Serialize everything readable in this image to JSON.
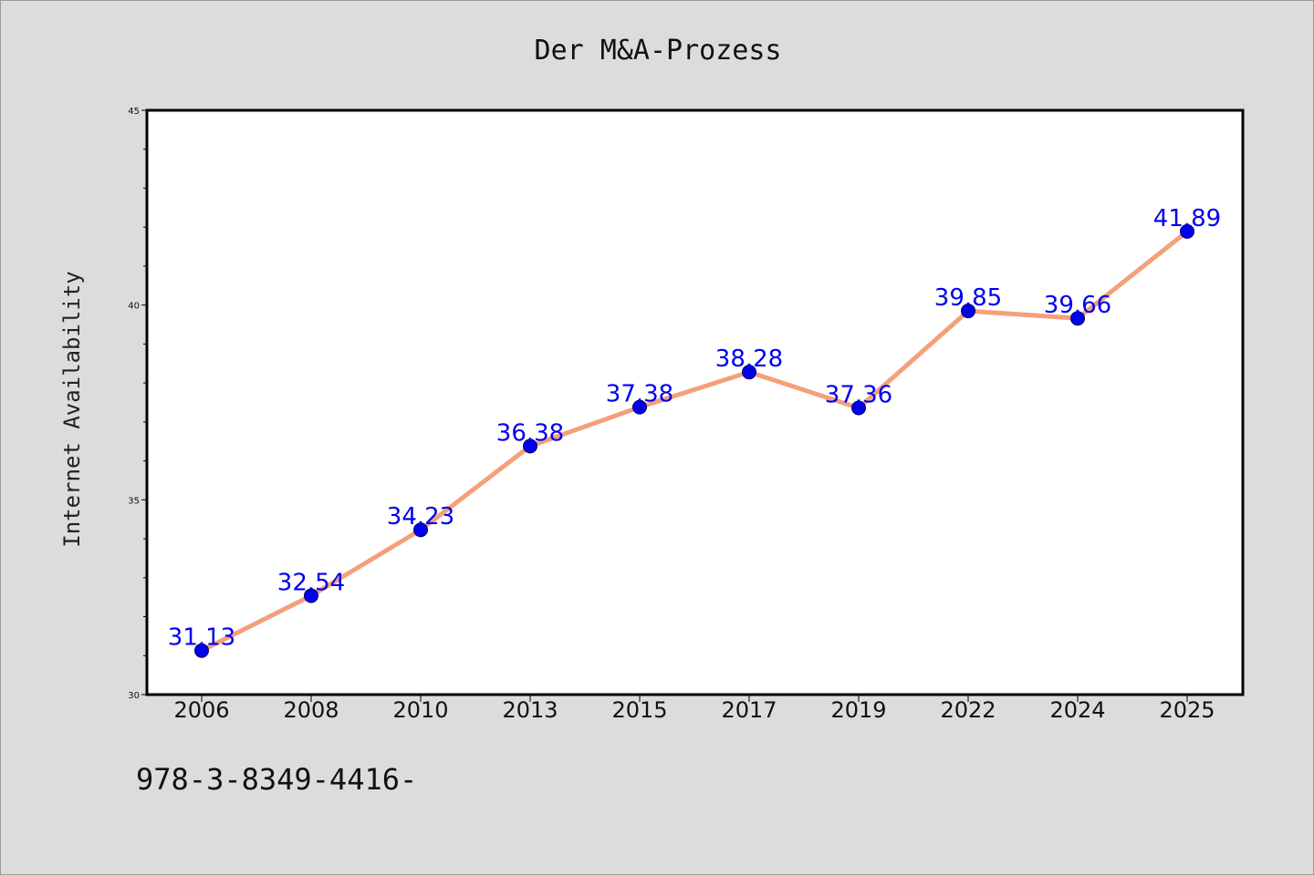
{
  "chart_data": {
    "type": "line",
    "title": "Der M&A-Prozess",
    "xlabel": "",
    "ylabel": "Internet Availability",
    "categories": [
      "2006",
      "2008",
      "2010",
      "2013",
      "2015",
      "2017",
      "2019",
      "2022",
      "2024",
      "2025"
    ],
    "series": [
      {
        "values": [
          31.13,
          32.54,
          34.23,
          36.38,
          37.38,
          38.28,
          37.36,
          39.85,
          39.66,
          41.89
        ],
        "labels": [
          "31.13",
          "32.54",
          "34.23",
          "36.38",
          "37.38",
          "38.28",
          "37.36",
          "39.85",
          "39.66",
          "41.89"
        ],
        "line_color": "#f4a07a",
        "marker_color": "#0000ee"
      }
    ],
    "ylim": [
      30,
      45
    ],
    "yticks": [
      "30",
      "35",
      "40",
      "45"
    ],
    "grid": false,
    "legend": "none"
  },
  "footnote": "978-3-8349-4416-",
  "colors": {
    "background": "#dcdcdc",
    "plot_area": "#ffffff",
    "axis": "#000000",
    "label_text": "#0000ee"
  }
}
